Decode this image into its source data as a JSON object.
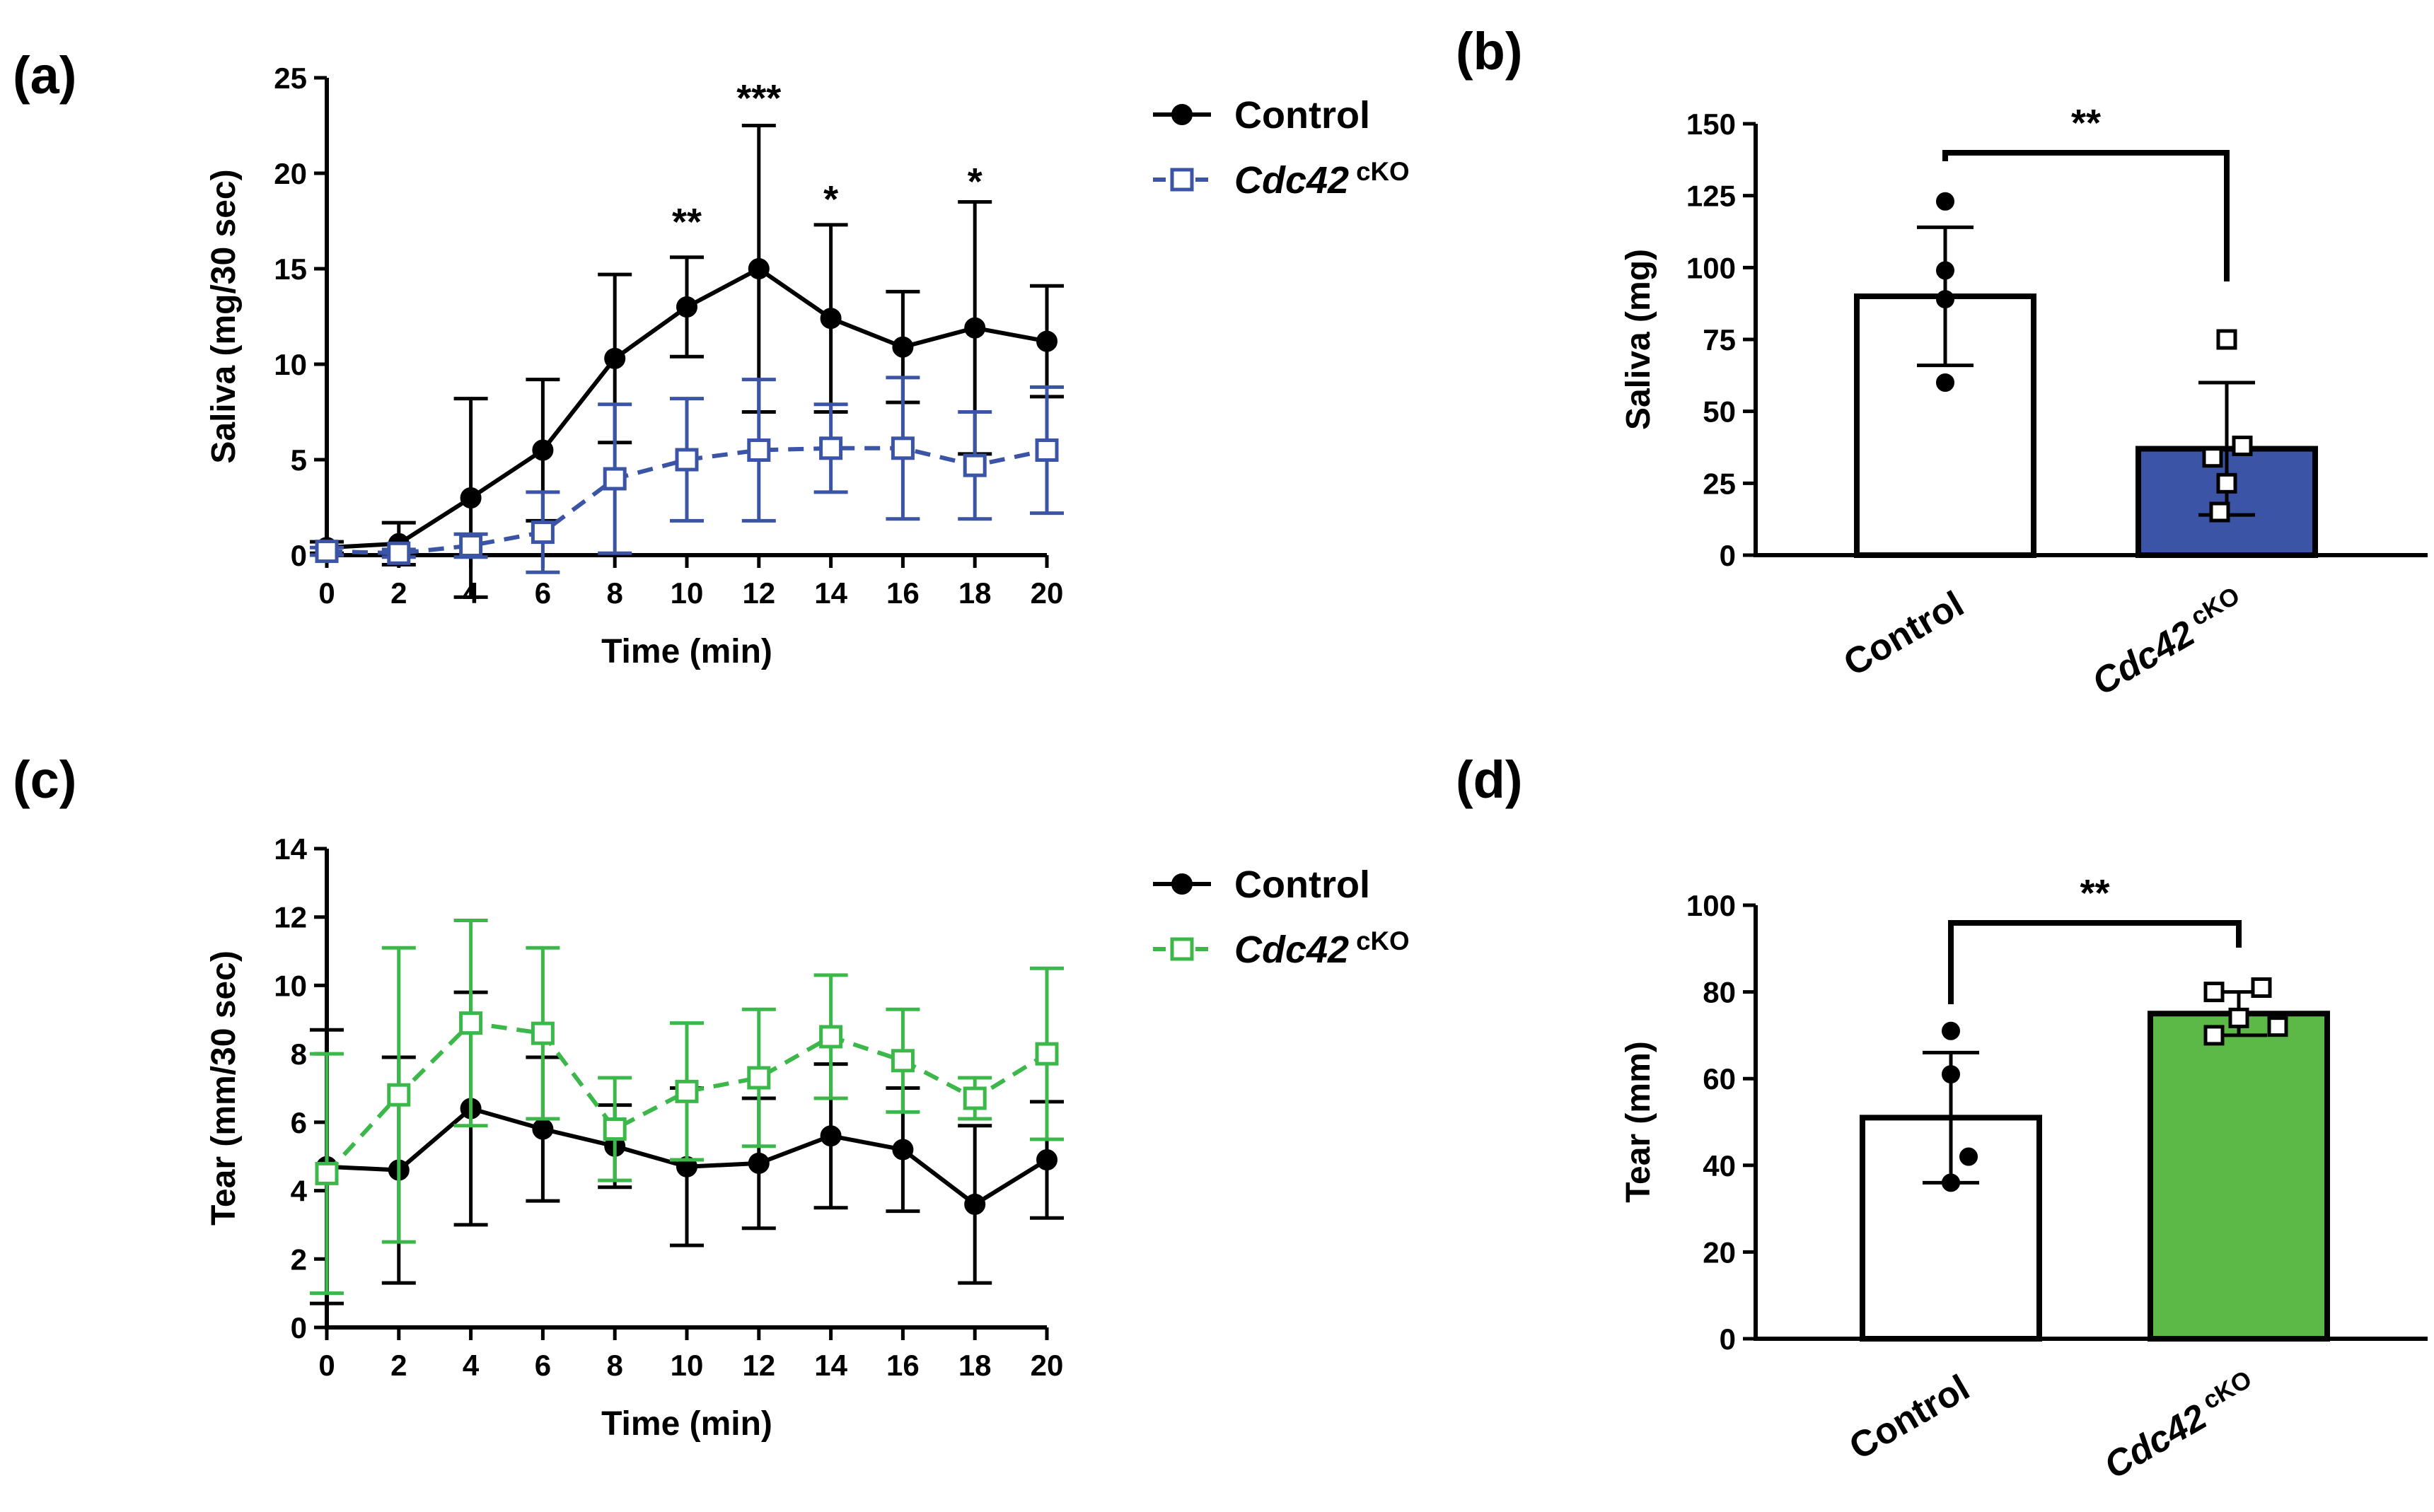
{
  "chart_data": [
    {
      "id": "a",
      "type": "line",
      "panel_label": "(a)",
      "xlabel": "Time (min)",
      "ylabel": "Saliva (mg/30 sec)",
      "xlim": [
        0,
        20
      ],
      "ylim": [
        0,
        25
      ],
      "x_ticks": [
        "0",
        "2",
        "4",
        "6",
        "8",
        "10",
        "12",
        "14",
        "16",
        "18",
        "20"
      ],
      "y_ticks": [
        "0",
        "5",
        "10",
        "15",
        "20",
        "25"
      ],
      "x": [
        0,
        2,
        4,
        6,
        8,
        10,
        12,
        14,
        16,
        18,
        20
      ],
      "series": [
        {
          "name": "Control",
          "name_italic": "",
          "superscript": "",
          "color": "#000000",
          "marker": "filled-circle",
          "dashed": false,
          "values": [
            0.4,
            0.6,
            3.0,
            5.5,
            10.3,
            13.0,
            15.0,
            12.4,
            10.9,
            11.9,
            11.2
          ],
          "errors": [
            0.3,
            1.1,
            5.2,
            3.7,
            4.4,
            2.6,
            7.5,
            4.9,
            2.9,
            6.6,
            2.9
          ]
        },
        {
          "name": "",
          "name_italic": "Cdc42",
          "superscript": "cKO",
          "color": "#3b54a5",
          "marker": "open-square",
          "dashed": true,
          "values": [
            0.2,
            0.1,
            0.5,
            1.2,
            4.0,
            5.0,
            5.5,
            5.6,
            5.6,
            4.7,
            5.5
          ],
          "errors": [
            0.2,
            0.2,
            0.6,
            2.1,
            3.9,
            3.2,
            3.7,
            2.3,
            3.7,
            2.8,
            3.3
          ]
        }
      ],
      "annotations": [
        {
          "x": 10,
          "text": "**"
        },
        {
          "x": 12,
          "text": "***"
        },
        {
          "x": 14,
          "text": "*"
        },
        {
          "x": 18,
          "text": "*"
        }
      ]
    },
    {
      "id": "b",
      "type": "bar",
      "panel_label": "(b)",
      "ylabel": "Saliva (mg)",
      "ylim": [
        0,
        150
      ],
      "y_ticks": [
        "0",
        "25",
        "50",
        "75",
        "100",
        "125",
        "150"
      ],
      "categories": [
        {
          "label": "Control",
          "italic": "",
          "superscript": ""
        },
        {
          "label": "",
          "italic": "Cdc42",
          "superscript": "cKO"
        }
      ],
      "values": [
        90,
        37
      ],
      "errors": [
        24,
        23
      ],
      "bar_colors": [
        "#ffffff",
        "#3b54a5"
      ],
      "points": [
        [
          123,
          99,
          89,
          60
        ],
        [
          75,
          38,
          34,
          25,
          15
        ]
      ],
      "point_markers": [
        "filled-circle",
        "open-square"
      ],
      "significance": "**"
    },
    {
      "id": "c",
      "type": "line",
      "panel_label": "(c)",
      "xlabel": "Time (min)",
      "ylabel": "Tear (mm/30 sec)",
      "xlim": [
        0,
        20
      ],
      "ylim": [
        0,
        14
      ],
      "x_ticks": [
        "0",
        "2",
        "4",
        "6",
        "8",
        "10",
        "12",
        "14",
        "16",
        "18",
        "20"
      ],
      "y_ticks": [
        "0",
        "2",
        "4",
        "6",
        "8",
        "10",
        "12",
        "14"
      ],
      "x": [
        0,
        2,
        4,
        6,
        8,
        10,
        12,
        14,
        16,
        18,
        20
      ],
      "series": [
        {
          "name": "Control",
          "name_italic": "",
          "superscript": "",
          "color": "#000000",
          "marker": "filled-circle",
          "dashed": false,
          "values": [
            4.7,
            4.6,
            6.4,
            5.8,
            5.3,
            4.7,
            4.8,
            5.6,
            5.2,
            3.6,
            4.9
          ],
          "errors": [
            4.0,
            3.3,
            3.4,
            2.1,
            1.2,
            2.3,
            1.9,
            2.1,
            1.8,
            2.3,
            1.7
          ]
        },
        {
          "name": "",
          "name_italic": "Cdc42",
          "superscript": "cKO",
          "color": "#3cb84a",
          "marker": "open-square",
          "dashed": true,
          "values": [
            4.5,
            6.8,
            8.9,
            8.6,
            5.8,
            6.9,
            7.3,
            8.5,
            7.8,
            6.7,
            8.0
          ],
          "errors": [
            3.5,
            4.3,
            3.0,
            2.5,
            1.5,
            2.0,
            2.0,
            1.8,
            1.5,
            0.6,
            2.5
          ]
        }
      ]
    },
    {
      "id": "d",
      "type": "bar",
      "panel_label": "(d)",
      "ylabel": "Tear (mm)",
      "ylim": [
        0,
        100
      ],
      "y_ticks": [
        "0",
        "20",
        "40",
        "60",
        "80",
        "100"
      ],
      "categories": [
        {
          "label": "Control",
          "italic": "",
          "superscript": ""
        },
        {
          "label": "",
          "italic": "Cdc42",
          "superscript": "cKO"
        }
      ],
      "values": [
        51,
        75
      ],
      "errors": [
        15,
        5
      ],
      "bar_colors": [
        "#ffffff",
        "#5cb947"
      ],
      "points": [
        [
          71,
          61,
          42,
          36
        ],
        [
          81,
          80,
          74,
          72,
          70
        ]
      ],
      "point_markers": [
        "filled-circle",
        "open-square"
      ],
      "significance": "**"
    }
  ]
}
